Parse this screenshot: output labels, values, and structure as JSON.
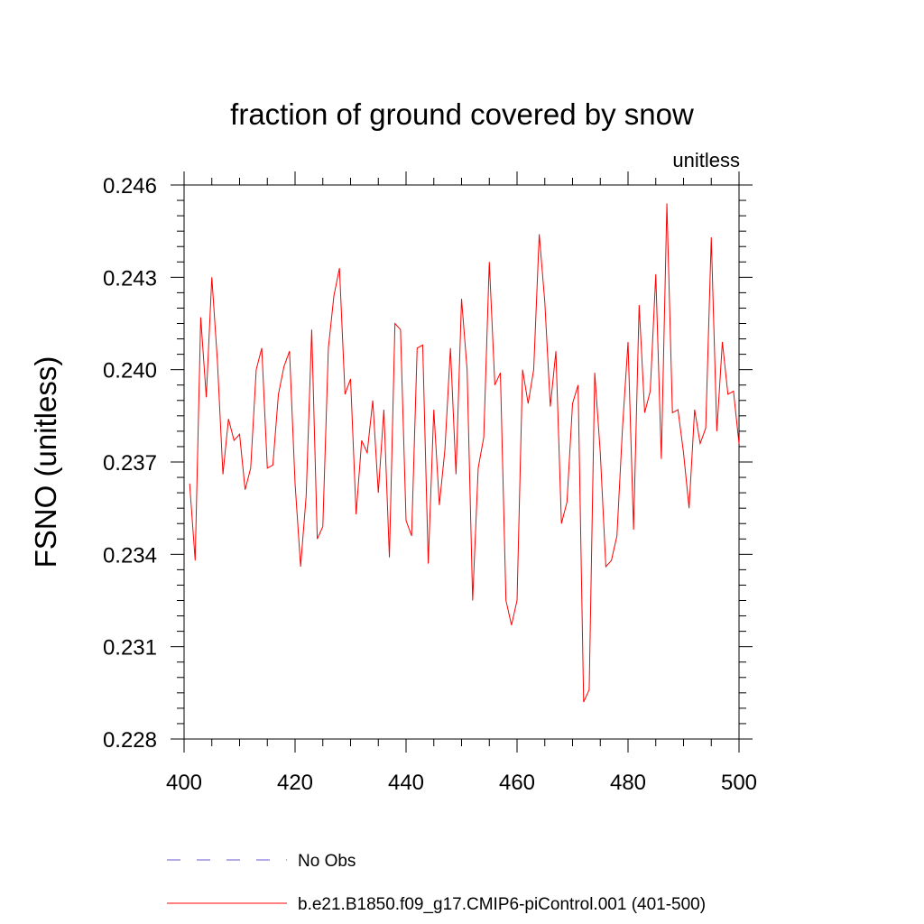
{
  "chart_data": {
    "type": "line",
    "title": "fraction of ground covered by snow",
    "units_label": "unitless",
    "xlabel": "",
    "ylabel": "FSNO  (unitless)",
    "xlim": [
      400,
      500
    ],
    "ylim": [
      0.228,
      0.246
    ],
    "x_ticks": [
      400,
      420,
      440,
      460,
      480,
      500
    ],
    "y_ticks": [
      0.228,
      0.231,
      0.234,
      0.237,
      0.24,
      0.243,
      0.246
    ],
    "y_tick_labels": [
      "0.228",
      "0.231",
      "0.234",
      "0.237",
      "0.240",
      "0.243",
      "0.246"
    ],
    "x_minor_step": 5,
    "y_minor_step": 0.0005,
    "grid": false,
    "legend_position": "bottom",
    "series": [
      {
        "name": "b.e21.B1850.f09_g17.CMIP6-piControl.001 (401-500)",
        "color": "#ff0000",
        "style": "solid",
        "x": [
          401,
          402,
          403,
          404,
          405,
          406,
          407,
          408,
          409,
          410,
          411,
          412,
          413,
          414,
          415,
          416,
          417,
          418,
          419,
          420,
          421,
          422,
          423,
          424,
          425,
          426,
          427,
          428,
          429,
          430,
          431,
          432,
          433,
          434,
          435,
          436,
          437,
          438,
          439,
          440,
          441,
          442,
          443,
          444,
          445,
          446,
          447,
          448,
          449,
          450,
          451,
          452,
          453,
          454,
          455,
          456,
          457,
          458,
          459,
          460,
          461,
          462,
          463,
          464,
          465,
          466,
          467,
          468,
          469,
          470,
          471,
          472,
          473,
          474,
          475,
          476,
          477,
          478,
          479,
          480,
          481,
          482,
          483,
          484,
          485,
          486,
          487,
          488,
          489,
          490,
          491,
          492,
          493,
          494,
          495,
          496,
          497,
          498,
          499,
          500
        ],
        "values": [
          0.2363,
          0.2338,
          0.2417,
          0.2391,
          0.243,
          0.2403,
          0.2366,
          0.2384,
          0.2377,
          0.2379,
          0.2361,
          0.2368,
          0.24,
          0.2407,
          0.2368,
          0.2369,
          0.2392,
          0.2401,
          0.2406,
          0.2363,
          0.2336,
          0.2359,
          0.2413,
          0.2345,
          0.2349,
          0.2407,
          0.2424,
          0.2433,
          0.2392,
          0.2397,
          0.2353,
          0.2377,
          0.2373,
          0.239,
          0.236,
          0.2387,
          0.2339,
          0.2415,
          0.2413,
          0.2351,
          0.2346,
          0.2407,
          0.2408,
          0.2337,
          0.2387,
          0.2356,
          0.2374,
          0.2407,
          0.2366,
          0.2423,
          0.24,
          0.2325,
          0.2368,
          0.2378,
          0.2435,
          0.2395,
          0.2399,
          0.2325,
          0.2317,
          0.2325,
          0.24,
          0.2389,
          0.24,
          0.2444,
          0.2422,
          0.2388,
          0.2406,
          0.235,
          0.2357,
          0.2389,
          0.2395,
          0.2292,
          0.2296,
          0.2399,
          0.2373,
          0.2336,
          0.2338,
          0.2346,
          0.2381,
          0.2409,
          0.2348,
          0.2421,
          0.2386,
          0.2393,
          0.2431,
          0.2371,
          0.2454,
          0.2386,
          0.2387,
          0.2373,
          0.2355,
          0.2387,
          0.2376,
          0.2381,
          0.2443,
          0.238,
          0.2409,
          0.2392,
          0.2393,
          0.2376
        ]
      }
    ],
    "legend": [
      {
        "label": "No Obs",
        "color": "#6a5acd",
        "style": "dashed"
      },
      {
        "label": "b.e21.B1850.f09_g17.CMIP6-piControl.001 (401-500)",
        "color": "#ff0000",
        "style": "solid"
      }
    ]
  }
}
